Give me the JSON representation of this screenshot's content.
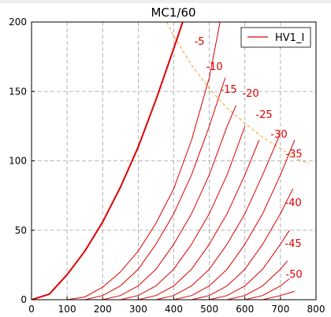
{
  "chart_data": {
    "type": "line",
    "title": "MC1/60",
    "xlabel": "",
    "ylabel": "",
    "xlim": [
      0,
      800
    ],
    "ylim": [
      0,
      200
    ],
    "x_ticks": [
      0,
      100,
      200,
      300,
      400,
      500,
      600,
      700,
      800
    ],
    "y_ticks": [
      0,
      50,
      100,
      150,
      200
    ],
    "grid": true,
    "legend": {
      "position": "top-right",
      "entries": [
        "HV1_I"
      ]
    },
    "colors": {
      "curves": "#dd0000",
      "dissipation": "#f2a020",
      "grid": "#a0a0a0"
    },
    "series": [
      {
        "name": "HV1_I",
        "grid_voltage": 0,
        "x": [
          0,
          50,
          100,
          150,
          200,
          250,
          300,
          350,
          400,
          425
        ],
        "y": [
          0,
          4,
          18,
          35,
          56,
          81,
          110,
          144,
          181,
          200
        ]
      },
      {
        "label": "-5",
        "grid_voltage": -5,
        "x": [
          0,
          100,
          150,
          200,
          250,
          300,
          350,
          400,
          450,
          500,
          530
        ],
        "y": [
          0,
          0,
          2,
          9,
          20,
          35,
          55,
          80,
          115,
          160,
          200
        ]
      },
      {
        "label": "-10",
        "grid_voltage": -10,
        "x": [
          100,
          150,
          200,
          250,
          300,
          350,
          400,
          450,
          500,
          545
        ],
        "y": [
          0,
          0,
          3,
          10,
          22,
          40,
          62,
          90,
          125,
          160
        ]
      },
      {
        "label": "-15",
        "grid_voltage": -15,
        "x": [
          150,
          200,
          250,
          300,
          350,
          400,
          450,
          500,
          550,
          575
        ],
        "y": [
          0,
          0,
          3,
          10,
          22,
          40,
          62,
          90,
          125,
          140
        ]
      },
      {
        "label": "-20",
        "grid_voltage": -20,
        "x": [
          200,
          250,
          300,
          350,
          400,
          450,
          500,
          550,
          600
        ],
        "y": [
          0,
          0,
          3,
          10,
          22,
          40,
          62,
          90,
          125
        ]
      },
      {
        "label": "-25",
        "grid_voltage": -25,
        "x": [
          250,
          300,
          350,
          400,
          450,
          500,
          550,
          600,
          640
        ],
        "y": [
          0,
          0,
          3,
          10,
          22,
          40,
          62,
          90,
          115
        ]
      },
      {
        "label": "-30",
        "grid_voltage": -30,
        "x": [
          300,
          350,
          400,
          450,
          500,
          550,
          600,
          650,
          700
        ],
        "y": [
          0,
          0,
          3,
          10,
          22,
          40,
          62,
          90,
          120
        ]
      },
      {
        "label": "-35",
        "grid_voltage": -35,
        "x": [
          350,
          400,
          450,
          500,
          550,
          600,
          650,
          700,
          740
        ],
        "y": [
          0,
          0,
          3,
          10,
          22,
          40,
          62,
          90,
          115
        ]
      },
      {
        "label": "-40",
        "grid_voltage": -40,
        "x": [
          400,
          450,
          500,
          550,
          600,
          650,
          700,
          735
        ],
        "y": [
          0,
          0,
          3,
          10,
          22,
          40,
          62,
          80
        ]
      },
      {
        "label": "-45",
        "grid_voltage": -45,
        "x": [
          450,
          500,
          550,
          600,
          650,
          700,
          725
        ],
        "y": [
          0,
          0,
          3,
          10,
          22,
          40,
          50
        ]
      },
      {
        "label": "-50",
        "grid_voltage": -50,
        "x": [
          500,
          550,
          600,
          650,
          700,
          720
        ],
        "y": [
          0,
          0,
          3,
          10,
          22,
          28
        ]
      },
      {
        "label": "",
        "grid_voltage": -55,
        "x": [
          550,
          600,
          650,
          700,
          725
        ],
        "y": [
          0,
          0,
          3,
          10,
          15
        ]
      },
      {
        "label": "",
        "grid_voltage": -60,
        "x": [
          600,
          650,
          700,
          740
        ],
        "y": [
          0,
          0,
          3,
          6
        ]
      }
    ],
    "dissipation_curve": {
      "x": [
        380,
        400,
        450,
        500,
        550,
        600,
        650,
        700,
        750,
        780
      ],
      "y": [
        200,
        190,
        169,
        152,
        138,
        127,
        117,
        109,
        101,
        98
      ]
    }
  }
}
